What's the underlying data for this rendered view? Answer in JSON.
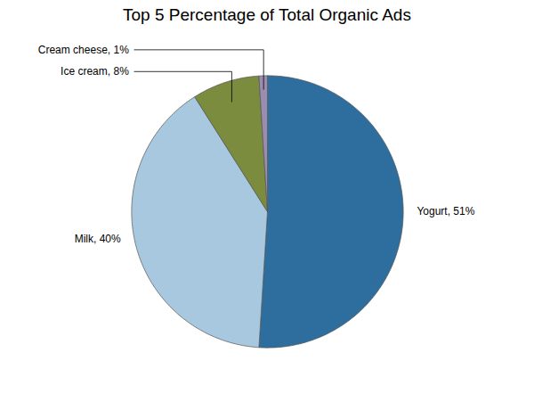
{
  "chart_data": {
    "type": "pie",
    "title": "Top 5 Percentage of Total Organic Ads",
    "categories": [
      "Yogurt",
      "Milk",
      "Ice cream",
      "Cream cheese"
    ],
    "values": [
      51,
      40,
      8,
      1
    ],
    "value_labels": [
      "Yogurt, 51%",
      "Milk, 40%",
      "Ice cream, 8%",
      "Cream cheese, 1%"
    ],
    "colors": [
      "#2E6E9E",
      "#A8C8E0",
      "#7B8C3E",
      "#9B8DB0"
    ],
    "data_labels": true
  }
}
